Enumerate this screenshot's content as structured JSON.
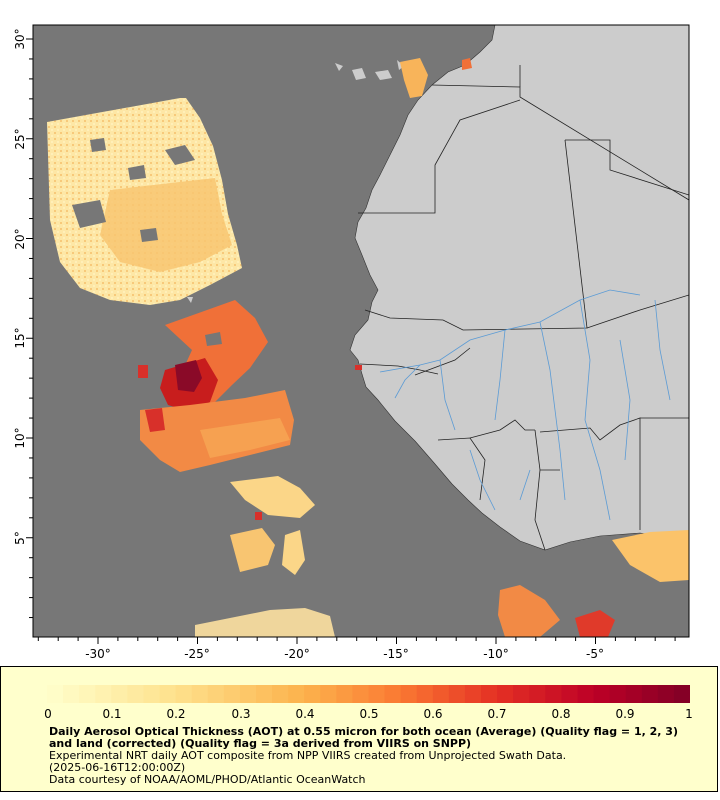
{
  "map": {
    "lon_ticks": [
      "-30°",
      "-25°",
      "-20°",
      "-15°",
      "-10°",
      "-5°"
    ],
    "lat_ticks": [
      "30°",
      "25°",
      "20°",
      "15°",
      "10°",
      "5°"
    ],
    "colors": {
      "ocean": "#777777",
      "land": "#cccccc",
      "border": "#222222",
      "river": "#5b9bd5"
    }
  },
  "legend": {
    "scale_labels": [
      "0",
      "0.1",
      "0.2",
      "0.3",
      "0.4",
      "0.5",
      "0.6",
      "0.7",
      "0.8",
      "0.9",
      "1"
    ],
    "title": "Daily Aerosol Optical Thickness (AOT) at 0.55 micron for both ocean (Average) (Quality flag = 1, 2, 3) and land (corrected) (Quality flag = 3a derived from VIIRS on SNPP)",
    "line2": "Experimental NRT daily AOT composite from NPP VIIRS created from Unprojected Swath Data.",
    "line3": "(2025-06-16T12:00:00Z)",
    "line4": "Data courtesy of NOAA/AOML/PHOD/Atlantic OceanWatch"
  }
}
